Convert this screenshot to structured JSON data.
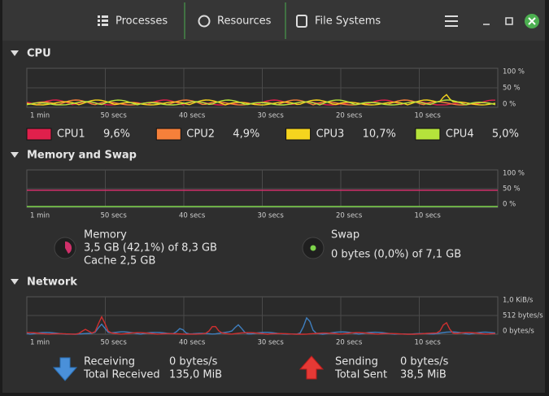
{
  "header": {
    "tabs": [
      "Processes",
      "Resources",
      "File Systems"
    ]
  },
  "time_labels": [
    "1 min",
    "50 secs",
    "40 secs",
    "30 secs",
    "20 secs",
    "10 secs"
  ],
  "percent_axis": [
    "100 %",
    "50 %",
    "0 %"
  ],
  "cpu": {
    "title": "CPU",
    "legend": [
      {
        "name": "CPU1",
        "value": "9,6%",
        "color": "#e0204c"
      },
      {
        "name": "CPU2",
        "value": "4,9%",
        "color": "#f6803a"
      },
      {
        "name": "CPU3",
        "value": "10,7%",
        "color": "#f5d41e"
      },
      {
        "name": "CPU4",
        "value": "5,0%",
        "color": "#b5e33b"
      }
    ]
  },
  "memory": {
    "title": "Memory and Swap",
    "memory": {
      "label": "Memory",
      "usage": "3,5 GB (42,1%) of 8,3 GB",
      "cache": "Cache 2,5 GB"
    },
    "swap": {
      "label": "Swap",
      "usage": "0 bytes (0,0%) of 7,1 GB"
    }
  },
  "network": {
    "title": "Network",
    "axis": [
      "1,0 KiB/s",
      "512 bytes/s",
      "0 bytes/s"
    ],
    "receiving": {
      "label": "Receiving",
      "rate": "0 bytes/s",
      "total_label": "Total Received",
      "total": "135,0 MiB"
    },
    "sending": {
      "label": "Sending",
      "rate": "0 bytes/s",
      "total_label": "Total Sent",
      "total": "38,5 MiB"
    }
  }
}
